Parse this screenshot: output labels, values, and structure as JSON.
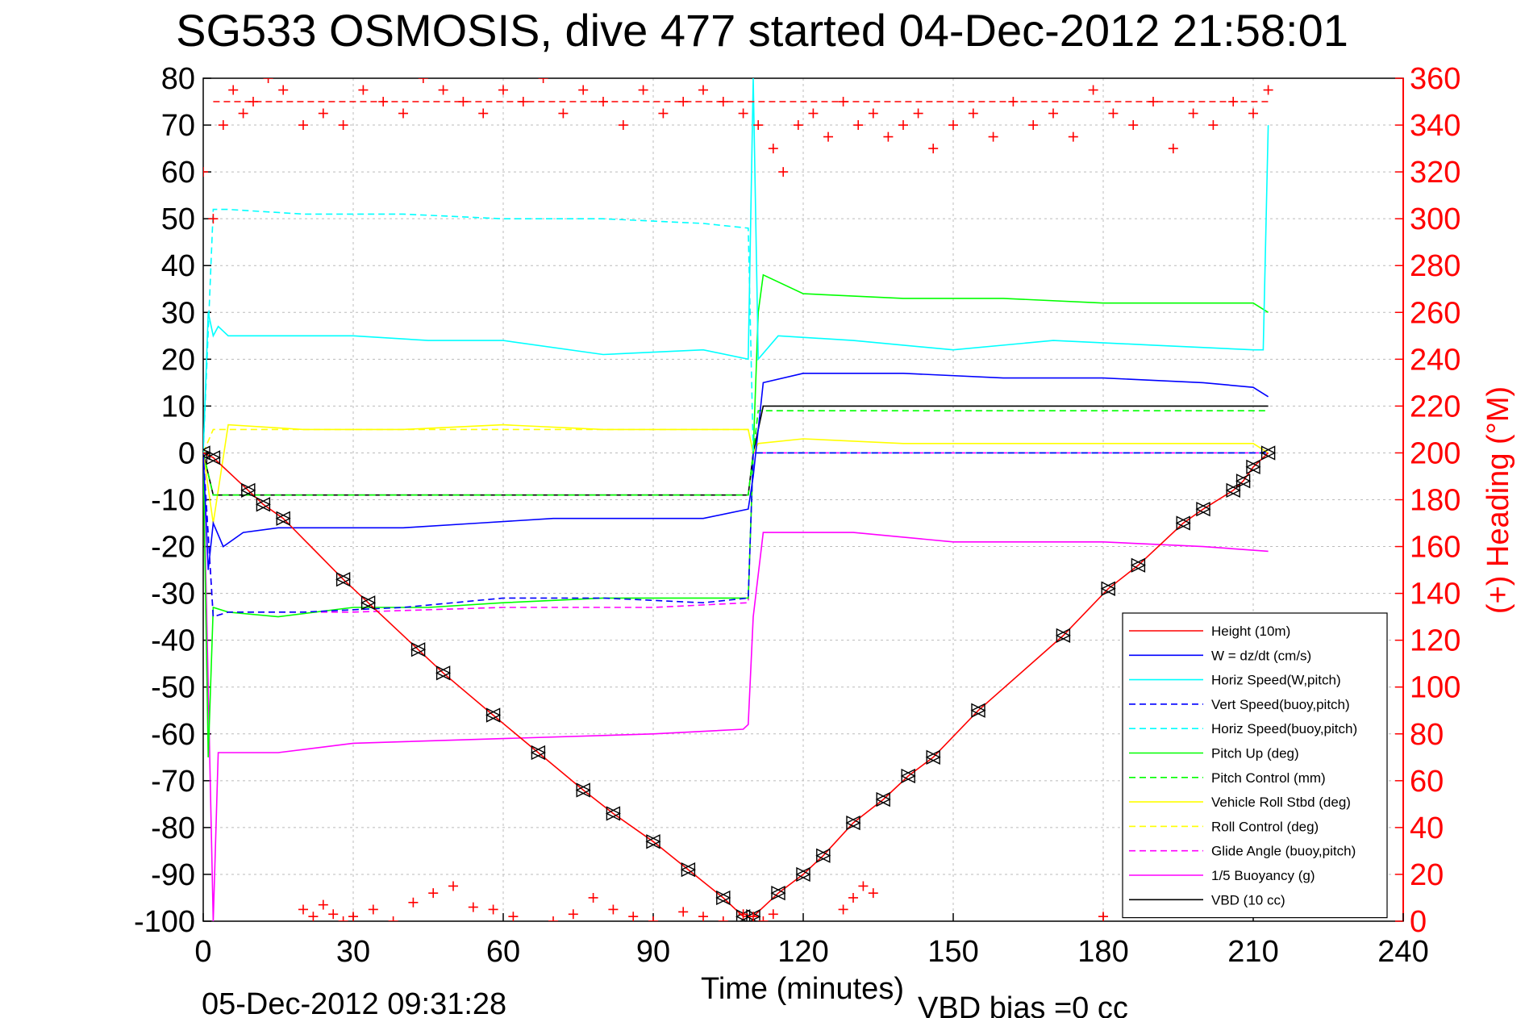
{
  "title": "SG533 OSMOSIS, dive 477 started 04-Dec-2012 21:58:01",
  "footer_time": "05-Dec-2012 09:31:28",
  "footer_bias": "VBD bias =0 cc",
  "chart_data": {
    "type": "line",
    "title": "SG533 OSMOSIS, dive 477 started 04-Dec-2012 21:58:01",
    "xlabel": "Time (minutes)",
    "ylabel": "",
    "y2label": "(+) Heading (°M)",
    "xlim": [
      0,
      240
    ],
    "ylim": [
      -100,
      80
    ],
    "y2lim": [
      0,
      360
    ],
    "xticks": [
      0,
      30,
      60,
      90,
      120,
      150,
      180,
      210,
      240
    ],
    "yticks": [
      -100,
      -90,
      -80,
      -70,
      -60,
      -50,
      -40,
      -30,
      -20,
      -10,
      0,
      10,
      20,
      30,
      40,
      50,
      60,
      70,
      80
    ],
    "y2ticks": [
      0,
      20,
      40,
      60,
      80,
      100,
      120,
      140,
      160,
      180,
      200,
      220,
      240,
      260,
      280,
      300,
      320,
      340,
      360
    ],
    "grid": true,
    "legend_position": "bottom-right",
    "series": [
      {
        "name": "Height (10m)",
        "color": "#ff0000",
        "style": "solid",
        "marker": "triangle-box",
        "x": [
          0,
          2,
          9,
          12,
          16,
          28,
          33,
          43,
          48,
          58,
          67,
          76,
          82,
          90,
          97,
          104,
          108,
          110,
          115,
          120,
          124,
          130,
          136,
          141,
          146,
          155,
          172,
          181,
          187,
          196,
          200,
          206,
          208,
          210,
          213
        ],
        "y": [
          0,
          -1,
          -8,
          -11,
          -14,
          -27,
          -32,
          -42,
          -47,
          -56,
          -64,
          -72,
          -77,
          -83,
          -89,
          -95,
          -99,
          -99,
          -94,
          -90,
          -86,
          -79,
          -74,
          -69,
          -65,
          -55,
          -39,
          -29,
          -24,
          -15,
          -12,
          -8,
          -6,
          -3,
          0
        ]
      },
      {
        "name": "W = dz/dt (cm/s)",
        "color": "#0000ff",
        "style": "solid",
        "x": [
          0,
          1,
          2,
          4,
          8,
          15,
          25,
          40,
          55,
          70,
          85,
          100,
          109,
          110,
          112,
          120,
          140,
          160,
          180,
          200,
          210,
          213
        ],
        "y": [
          0,
          -25,
          -15,
          -20,
          -17,
          -16,
          -16,
          -16,
          -15,
          -14,
          -14,
          -14,
          -12,
          -5,
          15,
          17,
          17,
          16,
          16,
          15,
          14,
          12
        ]
      },
      {
        "name": "Horiz Speed(W,pitch)",
        "color": "#00ffff",
        "style": "solid",
        "x": [
          0,
          1,
          2,
          3,
          5,
          15,
          30,
          45,
          60,
          80,
          100,
          109,
          110,
          111,
          115,
          130,
          150,
          170,
          190,
          210,
          212,
          213
        ],
        "y": [
          0,
          30,
          25,
          27,
          25,
          25,
          25,
          24,
          24,
          21,
          22,
          20,
          80,
          20,
          25,
          24,
          22,
          24,
          23,
          22,
          22,
          70
        ]
      },
      {
        "name": "Vert Speed(buoy,pitch)",
        "color": "#0000ff",
        "style": "dashed",
        "x": [
          0,
          2,
          5,
          20,
          40,
          60,
          80,
          100,
          109,
          110,
          111,
          213
        ],
        "y": [
          0,
          -35,
          -34,
          -34,
          -33,
          -31,
          -31,
          -32,
          -31,
          0,
          0,
          0
        ]
      },
      {
        "name": "Horiz Speed(buoy,pitch)",
        "color": "#00ffff",
        "style": "dashed",
        "x": [
          0,
          2,
          5,
          20,
          40,
          60,
          80,
          100,
          109,
          110,
          213
        ],
        "y": [
          0,
          52,
          52,
          51,
          51,
          50,
          50,
          49,
          48,
          0,
          0
        ]
      },
      {
        "name": "Pitch Up (deg)",
        "color": "#00ff00",
        "style": "solid",
        "x": [
          0,
          1,
          2,
          5,
          15,
          30,
          45,
          60,
          80,
          100,
          109,
          110,
          111,
          112,
          120,
          140,
          160,
          180,
          200,
          210,
          213
        ],
        "y": [
          0,
          -65,
          -33,
          -34,
          -35,
          -33,
          -33,
          -32,
          -31,
          -31,
          -31,
          0,
          30,
          38,
          34,
          33,
          33,
          32,
          32,
          32,
          30
        ]
      },
      {
        "name": "Pitch Control (mm)",
        "color": "#00ff00",
        "style": "dashed",
        "x": [
          0,
          2,
          30,
          60,
          90,
          109,
          110,
          111,
          213
        ],
        "y": [
          0,
          -9,
          -9,
          -9,
          -9,
          -9,
          0,
          9,
          9
        ]
      },
      {
        "name": "Vehicle Roll Stbd (deg)",
        "color": "#ffff00",
        "style": "solid",
        "x": [
          0,
          2,
          5,
          20,
          40,
          60,
          80,
          100,
          109,
          110,
          111,
          120,
          140,
          160,
          180,
          200,
          210,
          213
        ],
        "y": [
          0,
          -15,
          6,
          5,
          5,
          6,
          5,
          5,
          5,
          0,
          2,
          3,
          2,
          2,
          2,
          2,
          2,
          0
        ]
      },
      {
        "name": "Roll Control (deg)",
        "color": "#ffff00",
        "style": "dashed",
        "x": [
          0,
          2,
          109,
          110,
          213
        ],
        "y": [
          0,
          5,
          5,
          0,
          0
        ]
      },
      {
        "name": "Glide Angle (buoy,pitch)",
        "color": "#ff00ff",
        "style": "dashed",
        "x": [
          0,
          2,
          5,
          30,
          60,
          90,
          109,
          110,
          111,
          213
        ],
        "y": [
          0,
          -35,
          -34,
          -34,
          -33,
          -33,
          -32,
          0,
          0,
          0
        ]
      },
      {
        "name": "1/5 Buoyancy (g)",
        "color": "#ff00ff",
        "style": "solid",
        "x": [
          0,
          2,
          3,
          15,
          30,
          60,
          90,
          108,
          109,
          110,
          112,
          115,
          130,
          150,
          180,
          200,
          213
        ],
        "y": [
          0,
          -100,
          -64,
          -64,
          -62,
          -61,
          -60,
          -59,
          -58,
          -35,
          -17,
          -17,
          -17,
          -19,
          -19,
          -20,
          -21
        ]
      },
      {
        "name": "VBD (10 cc)",
        "color": "#000000",
        "style": "solid",
        "x": [
          0,
          2,
          30,
          60,
          90,
          109,
          110,
          112,
          120,
          150,
          180,
          213
        ],
        "y": [
          0,
          -9,
          -9,
          -9,
          -9,
          -9,
          0,
          10,
          10,
          10,
          10,
          10
        ]
      }
    ],
    "heading": {
      "axis": "right",
      "color": "#ff0000",
      "marker": "+",
      "mean_line": 350,
      "x": [
        0,
        2,
        4,
        6,
        8,
        10,
        13,
        16,
        20,
        24,
        28,
        32,
        36,
        40,
        44,
        48,
        52,
        56,
        60,
        64,
        68,
        72,
        76,
        80,
        84,
        88,
        92,
        96,
        100,
        104,
        108,
        111,
        114,
        116,
        119,
        122,
        125,
        128,
        131,
        134,
        137,
        140,
        143,
        146,
        150,
        154,
        158,
        162,
        166,
        170,
        174,
        178,
        182,
        186,
        190,
        194,
        198,
        202,
        206,
        210,
        213
      ],
      "y": [
        320,
        300,
        340,
        355,
        345,
        350,
        360,
        355,
        340,
        345,
        340,
        355,
        350,
        345,
        360,
        355,
        350,
        345,
        355,
        350,
        360,
        345,
        355,
        350,
        340,
        355,
        345,
        350,
        355,
        350,
        345,
        340,
        330,
        320,
        340,
        345,
        335,
        350,
        340,
        345,
        335,
        340,
        345,
        330,
        340,
        345,
        335,
        350,
        340,
        345,
        335,
        355,
        345,
        340,
        350,
        330,
        345,
        340,
        350,
        345,
        355
      ]
    },
    "heading_lower": {
      "axis": "right",
      "color": "#ff0000",
      "marker": "+",
      "x": [
        20,
        22,
        24,
        26,
        28,
        30,
        34,
        38,
        42,
        46,
        50,
        54,
        58,
        62,
        70,
        74,
        78,
        82,
        86,
        90,
        96,
        100,
        104,
        108,
        110,
        112,
        114,
        128,
        130,
        132,
        134,
        180
      ],
      "y": [
        5,
        2,
        7,
        3,
        0,
        2,
        5,
        0,
        8,
        12,
        15,
        6,
        5,
        2,
        0,
        3,
        10,
        5,
        2,
        0,
        4,
        2,
        0,
        3,
        2,
        0,
        3,
        5,
        10,
        15,
        12,
        2
      ]
    }
  }
}
